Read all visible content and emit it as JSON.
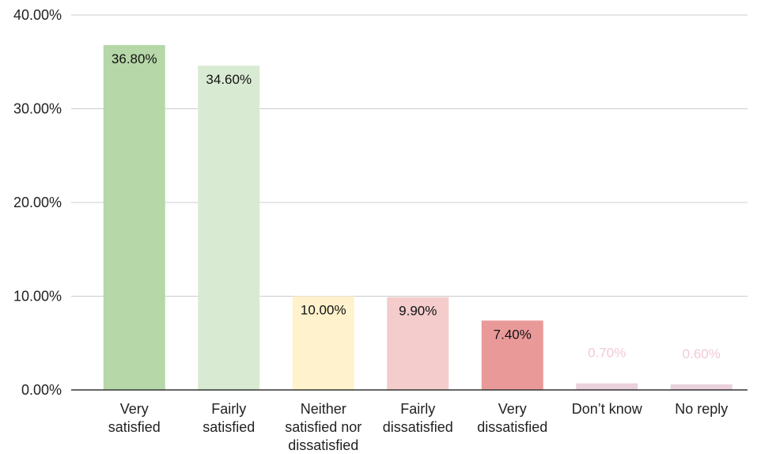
{
  "chart_data": {
    "type": "bar",
    "title": "",
    "xlabel": "",
    "ylabel": "",
    "ylim": [
      0,
      40
    ],
    "yticks": [
      0,
      10,
      20,
      30,
      40
    ],
    "ytick_labels": [
      "0.00%",
      "10.00%",
      "20.00%",
      "30.00%",
      "40.00%"
    ],
    "grid": true,
    "legend": "none",
    "categories": [
      [
        "Very",
        "satisfied"
      ],
      [
        "Fairly",
        "satisfied"
      ],
      [
        "Neither",
        "satisfied nor",
        "dissatisfied"
      ],
      [
        "Fairly",
        "dissatisfied"
      ],
      [
        "Very",
        "dissatisfied"
      ],
      [
        "Don’t know"
      ],
      [
        "No reply"
      ]
    ],
    "values": [
      36.8,
      34.6,
      10.0,
      9.9,
      7.4,
      0.7,
      0.6
    ],
    "value_labels": [
      "36.80%",
      "34.60%",
      "10.00%",
      "9.90%",
      "7.40%",
      "0.70%",
      "0.60%"
    ],
    "colors": [
      "#b6d7a8",
      "#d9ead3",
      "#fff2cc",
      "#f4cccc",
      "#ea9999",
      "#ead1dc",
      "#ead1dc"
    ],
    "label_colors": [
      "#111111",
      "#111111",
      "#111111",
      "#111111",
      "#111111",
      "#f2c8d8",
      "#f2c8d8"
    ]
  }
}
